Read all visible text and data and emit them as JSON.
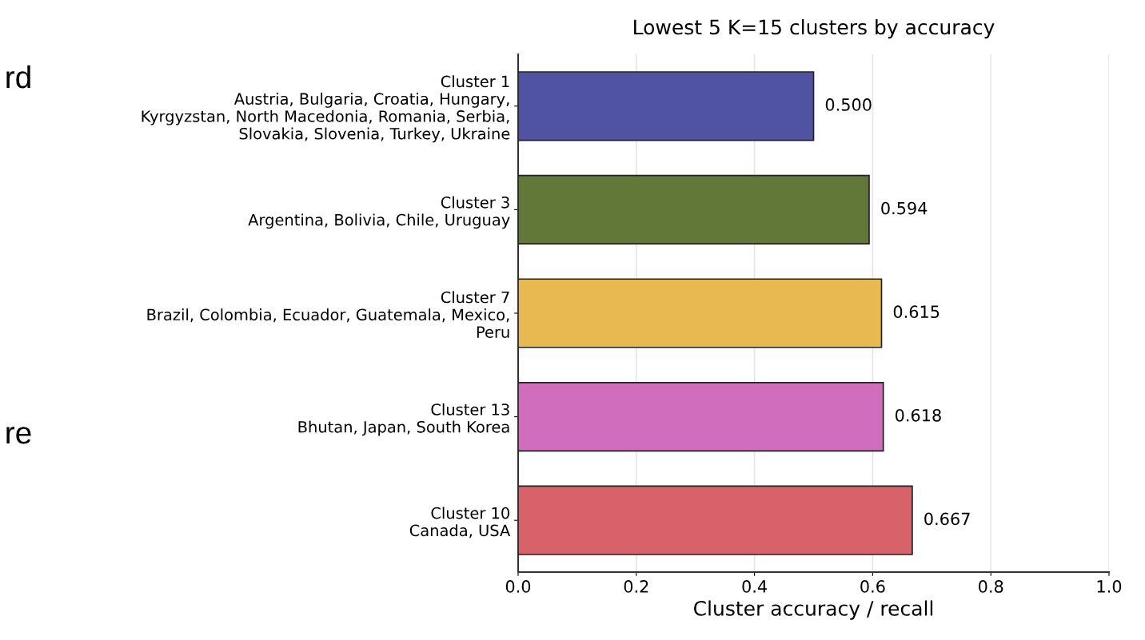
{
  "chart_data": {
    "type": "bar",
    "orientation": "horizontal",
    "title": "Lowest 5 K=15 clusters by accuracy",
    "xlabel": "Cluster accuracy / recall",
    "categories": [
      "Cluster 1\nAustria, Bulgaria, Croatia, Hungary,\nKyrgyzstan, North Macedonia, Romania, Serbia,\nSlovakia, Slovenia, Turkey, Ukraine",
      "Cluster 3\nArgentina, Bolivia, Chile, Uruguay",
      "Cluster 7\nBrazil, Colombia, Ecuador, Guatemala, Mexico,\nPeru",
      "Cluster 13\nBhutan, Japan, South Korea",
      "Cluster 10\nCanada, USA"
    ],
    "values": [
      0.5,
      0.594,
      0.615,
      0.618,
      0.667
    ],
    "value_labels": [
      "0.500",
      "0.594",
      "0.615",
      "0.618",
      "0.667"
    ],
    "colors": [
      "#5052a2",
      "#627838",
      "#e8b950",
      "#d06dbd",
      "#d8626a"
    ],
    "xlim": [
      0,
      1
    ],
    "xticks": [
      {
        "value": 0,
        "label": "0.0"
      },
      {
        "value": 0.2,
        "label": "0.2"
      },
      {
        "value": 0.4,
        "label": "0.4"
      },
      {
        "value": 0.6,
        "label": "0.6"
      },
      {
        "value": 0.8,
        "label": "0.8"
      },
      {
        "value": 1,
        "label": "1.0"
      }
    ],
    "grid": "x",
    "annotations": [
      "rd",
      "re"
    ]
  }
}
